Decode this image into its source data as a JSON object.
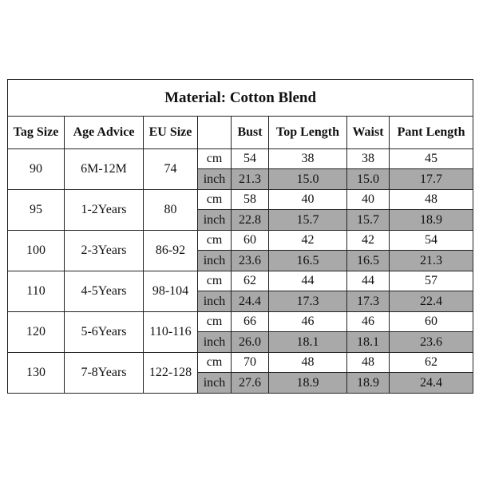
{
  "title": "Material: Cotton Blend",
  "headers": [
    "Tag Size",
    "Age Advice",
    "EU Size",
    "",
    "Bust",
    "Top Length",
    "Waist",
    "Pant Length"
  ],
  "units": {
    "cm": "cm",
    "inch": "inch"
  },
  "rows": [
    {
      "tag": "90",
      "age": "6M-12M",
      "eu": "74",
      "cm": [
        "54",
        "38",
        "38",
        "45"
      ],
      "inch": [
        "21.3",
        "15.0",
        "15.0",
        "17.7"
      ]
    },
    {
      "tag": "95",
      "age": "1-2Years",
      "eu": "80",
      "cm": [
        "58",
        "40",
        "40",
        "48"
      ],
      "inch": [
        "22.8",
        "15.7",
        "15.7",
        "18.9"
      ]
    },
    {
      "tag": "100",
      "age": "2-3Years",
      "eu": "86-92",
      "cm": [
        "60",
        "42",
        "42",
        "54"
      ],
      "inch": [
        "23.6",
        "16.5",
        "16.5",
        "21.3"
      ]
    },
    {
      "tag": "110",
      "age": "4-5Years",
      "eu": "98-104",
      "cm": [
        "62",
        "44",
        "44",
        "57"
      ],
      "inch": [
        "24.4",
        "17.3",
        "17.3",
        "22.4"
      ]
    },
    {
      "tag": "120",
      "age": "5-6Years",
      "eu": "110-116",
      "cm": [
        "66",
        "46",
        "46",
        "60"
      ],
      "inch": [
        "26.0",
        "18.1",
        "18.1",
        "23.6"
      ]
    },
    {
      "tag": "130",
      "age": "7-8Years",
      "eu": "122-128",
      "cm": [
        "70",
        "48",
        "48",
        "62"
      ],
      "inch": [
        "27.6",
        "18.9",
        "18.9",
        "24.4"
      ]
    }
  ]
}
